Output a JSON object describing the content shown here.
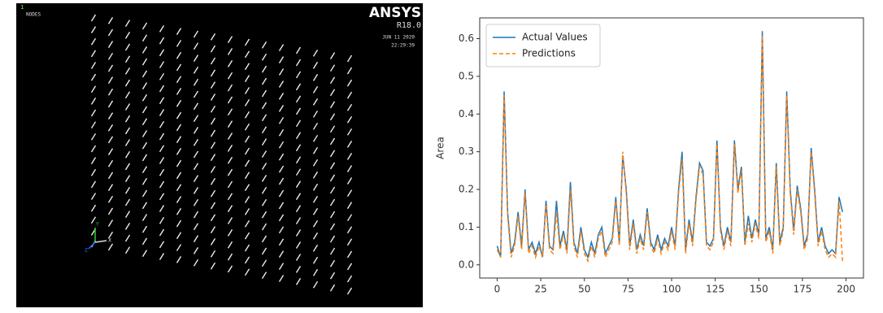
{
  "ansys_view": {
    "window_number": "1",
    "label": "NODES",
    "brand": "ANSYS",
    "release": "R18.0",
    "date": "JUN 11 2020",
    "time": "22:29:39",
    "triad": {
      "x": "X",
      "y": "Y",
      "z": "Z"
    }
  },
  "chart_data": {
    "type": "line",
    "ylabel": "Area",
    "x": [
      0,
      2,
      4,
      6,
      8,
      10,
      12,
      14,
      16,
      18,
      20,
      22,
      24,
      26,
      28,
      30,
      32,
      34,
      36,
      38,
      40,
      42,
      44,
      46,
      48,
      50,
      52,
      54,
      56,
      58,
      60,
      62,
      64,
      66,
      68,
      70,
      72,
      74,
      76,
      78,
      80,
      82,
      84,
      86,
      88,
      90,
      92,
      94,
      96,
      98,
      100,
      102,
      104,
      106,
      108,
      110,
      112,
      114,
      116,
      118,
      120,
      122,
      124,
      126,
      128,
      130,
      132,
      134,
      136,
      138,
      140,
      142,
      144,
      146,
      148,
      150,
      152,
      154,
      156,
      158,
      160,
      162,
      164,
      166,
      168,
      170,
      172,
      174,
      176,
      178,
      180,
      182,
      184,
      186,
      188,
      190,
      192,
      194,
      196,
      198
    ],
    "series": [
      {
        "name": "Actual Values",
        "color": "#1f77b4",
        "linestyle": "solid",
        "values": [
          0.05,
          0.02,
          0.46,
          0.14,
          0.03,
          0.06,
          0.14,
          0.05,
          0.2,
          0.04,
          0.06,
          0.03,
          0.06,
          0.02,
          0.17,
          0.05,
          0.04,
          0.17,
          0.05,
          0.09,
          0.04,
          0.22,
          0.06,
          0.03,
          0.1,
          0.04,
          0.02,
          0.06,
          0.03,
          0.08,
          0.1,
          0.03,
          0.05,
          0.07,
          0.18,
          0.06,
          0.29,
          0.2,
          0.05,
          0.12,
          0.04,
          0.08,
          0.05,
          0.15,
          0.06,
          0.04,
          0.08,
          0.04,
          0.07,
          0.05,
          0.1,
          0.05,
          0.2,
          0.3,
          0.04,
          0.12,
          0.06,
          0.18,
          0.27,
          0.25,
          0.06,
          0.05,
          0.07,
          0.33,
          0.1,
          0.05,
          0.1,
          0.06,
          0.33,
          0.2,
          0.26,
          0.06,
          0.13,
          0.07,
          0.12,
          0.08,
          0.62,
          0.07,
          0.1,
          0.04,
          0.27,
          0.06,
          0.1,
          0.46,
          0.2,
          0.09,
          0.21,
          0.15,
          0.05,
          0.08,
          0.31,
          0.2,
          0.06,
          0.1,
          0.05,
          0.03,
          0.04,
          0.03,
          0.18,
          0.14
        ]
      },
      {
        "name": "Predictions",
        "color": "#ff7f0e",
        "linestyle": "dashed",
        "values": [
          0.04,
          0.02,
          0.45,
          0.13,
          0.02,
          0.05,
          0.13,
          0.04,
          0.19,
          0.03,
          0.05,
          0.02,
          0.05,
          0.02,
          0.16,
          0.04,
          0.03,
          0.14,
          0.04,
          0.08,
          0.03,
          0.2,
          0.05,
          0.02,
          0.09,
          0.03,
          0.01,
          0.05,
          0.02,
          0.07,
          0.09,
          0.02,
          0.04,
          0.06,
          0.17,
          0.05,
          0.3,
          0.19,
          0.04,
          0.11,
          0.03,
          0.07,
          0.04,
          0.14,
          0.05,
          0.03,
          0.07,
          0.03,
          0.06,
          0.04,
          0.09,
          0.04,
          0.19,
          0.28,
          0.03,
          0.11,
          0.05,
          0.17,
          0.26,
          0.24,
          0.05,
          0.04,
          0.06,
          0.32,
          0.09,
          0.04,
          0.09,
          0.05,
          0.32,
          0.19,
          0.25,
          0.05,
          0.11,
          0.06,
          0.11,
          0.07,
          0.61,
          0.06,
          0.09,
          0.03,
          0.26,
          0.05,
          0.09,
          0.45,
          0.19,
          0.08,
          0.2,
          0.14,
          0.04,
          0.07,
          0.3,
          0.19,
          0.05,
          0.09,
          0.04,
          0.02,
          0.03,
          0.02,
          0.17,
          0.01
        ]
      }
    ],
    "xlim": [
      -10,
      210
    ],
    "xticks": [
      0,
      25,
      50,
      75,
      100,
      125,
      150,
      175,
      200
    ],
    "ylim": [
      -0.035,
      0.655
    ],
    "yticks": [
      {
        "value": 0,
        "label": "0.0"
      },
      0.1,
      0.2,
      0.3,
      0.4,
      0.5,
      0.6
    ],
    "legend": "upper left",
    "grid": false
  }
}
